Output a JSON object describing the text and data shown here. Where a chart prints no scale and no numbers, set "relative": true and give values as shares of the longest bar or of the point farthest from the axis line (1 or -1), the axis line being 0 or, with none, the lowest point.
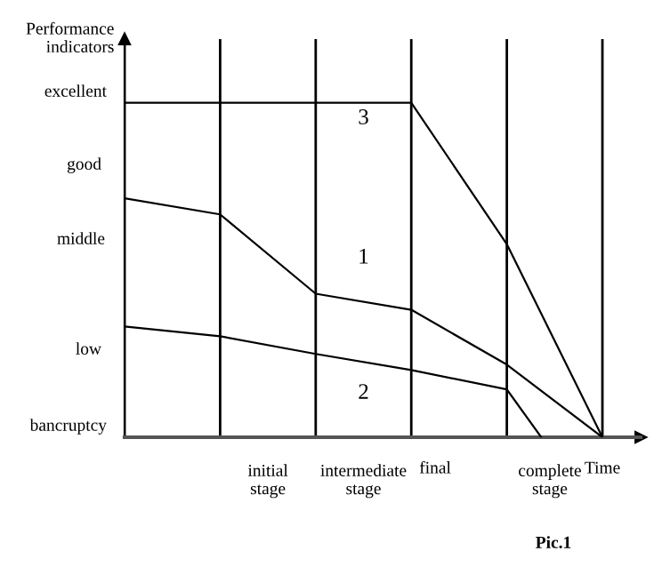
{
  "chart_data": {
    "type": "line",
    "ylabel": "Performance\nindicators",
    "xlabel": "Time",
    "grid": "x",
    "relative": true,
    "marker": "none",
    "line_style": "solid",
    "categories": [
      null,
      null,
      null,
      null,
      null,
      null
    ],
    "series": [
      {
        "color": "#000000",
        "values": [
          0.714,
          0.666,
          0.429,
          0.381,
          0.217,
          0
        ]
      },
      {
        "color": "#000000",
        "values": [
          0.331,
          0.302,
          0.249,
          0.201,
          0.143,
          null
        ]
      },
      {
        "color": "#000000",
        "values": [
          1,
          1,
          1,
          1,
          0.577,
          0
        ]
      }
    ],
    "annotations": [
      "excellent",
      "good",
      "middle",
      "low",
      "bancruptcy",
      "initial\nstage",
      "intermediate\nstage",
      "final",
      "complete\nstage",
      "3",
      "1",
      "2",
      "Pic.1"
    ]
  }
}
